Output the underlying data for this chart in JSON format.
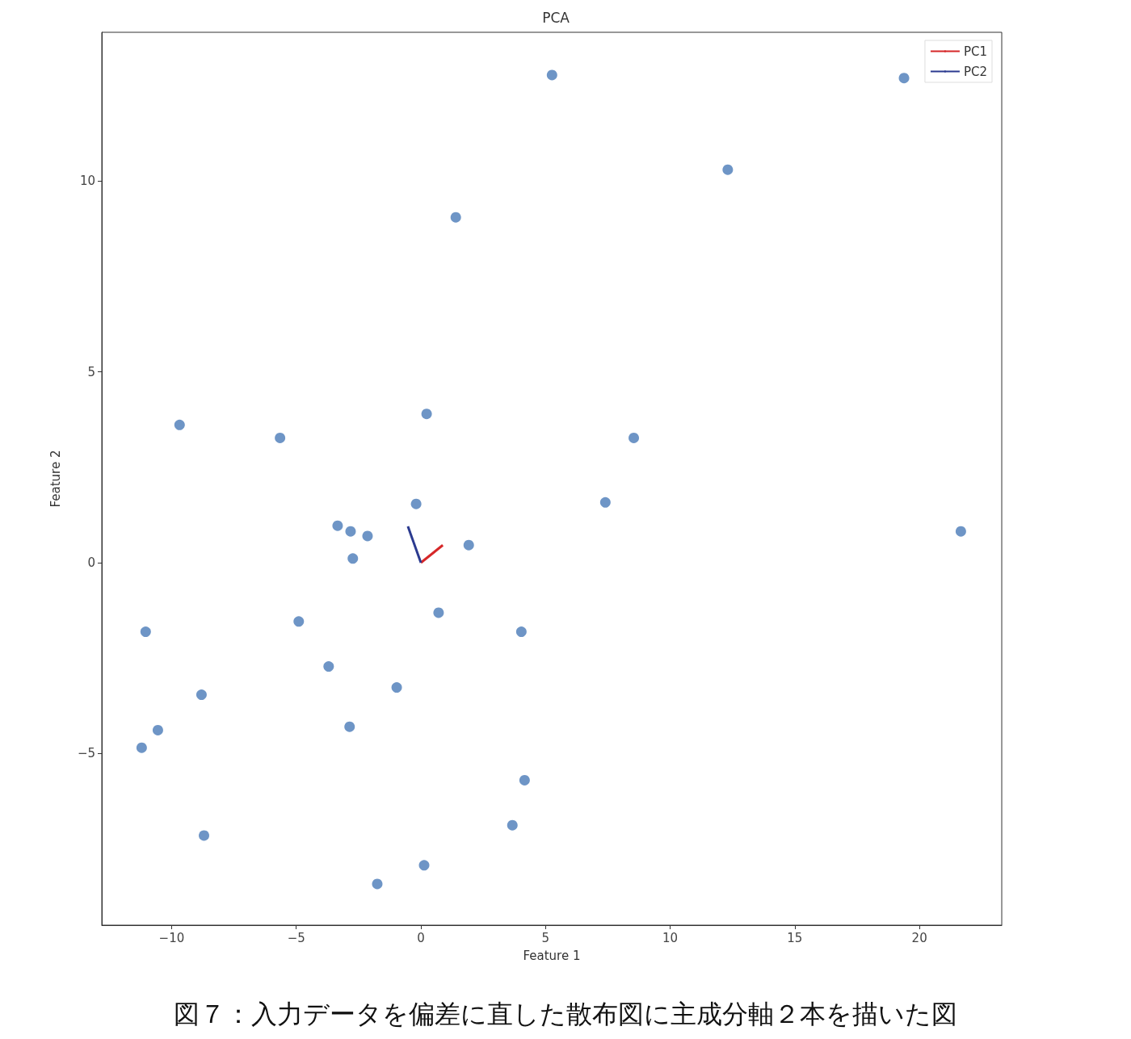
{
  "chart_data": {
    "type": "scatter",
    "title": "PCA",
    "xlabel": "Feature 1",
    "ylabel": "Feature 2",
    "annotations": [
      "図７：入力データを偏差に直した散布図に主成分軸２本を描いた図"
    ],
    "xlim": [
      -12.8,
      23.3
    ],
    "ylim": [
      -9.5,
      13.9
    ],
    "xticks": [
      {
        "value": -10,
        "label": "−10"
      },
      {
        "value": -5,
        "label": "−5"
      },
      0,
      5,
      10,
      15,
      20
    ],
    "yticks": [
      {
        "value": -5,
        "label": "−5"
      },
      0,
      5,
      10
    ],
    "grid": false,
    "legend": "top right",
    "marker": "circle",
    "series": [
      {
        "color": "#4a7ab8",
        "x": [
          5.26,
          19.38,
          12.31,
          1.4,
          -9.68,
          -5.65,
          0.23,
          8.54,
          -0.19,
          7.4,
          -3.34,
          -2.82,
          -2.14,
          -2.73,
          1.92,
          21.66,
          -11.04,
          -4.9,
          0.71,
          4.03,
          -3.7,
          -0.97,
          -8.8,
          -10.55,
          -11.2,
          -2.86,
          4.16,
          -8.7,
          3.67,
          0.13,
          -1.75
        ],
        "values": [
          12.78,
          12.7,
          10.3,
          9.05,
          3.61,
          3.27,
          3.9,
          3.27,
          1.54,
          1.58,
          0.97,
          0.82,
          0.7,
          0.11,
          0.46,
          0.82,
          -1.81,
          -1.54,
          -1.31,
          -1.81,
          -2.72,
          -3.27,
          -3.46,
          -4.39,
          -4.85,
          -4.3,
          -5.7,
          -7.15,
          -6.88,
          -7.93,
          -8.42
        ]
      },
      {
        "type": "line",
        "marker": "none",
        "name": "PC1",
        "color": "#d62728",
        "x": [
          0,
          0.88
        ],
        "values": [
          0,
          0.46
        ]
      },
      {
        "type": "line",
        "marker": "none",
        "name": "PC2",
        "color": "#2b3a8f",
        "x": [
          0,
          -0.52
        ],
        "values": [
          0,
          0.95
        ]
      }
    ]
  }
}
